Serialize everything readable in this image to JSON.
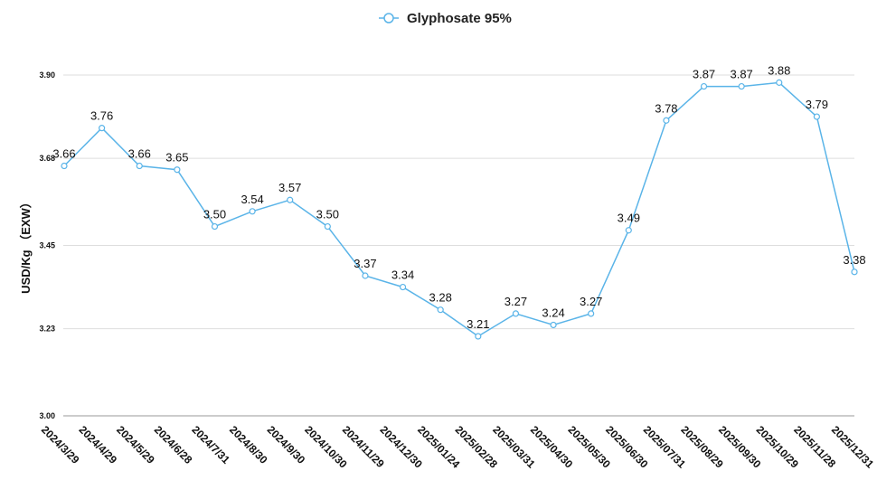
{
  "chart_data": {
    "type": "line",
    "title": "",
    "xlabel": "",
    "ylabel": "USD/Kg （EXW）",
    "ylim": [
      3.0,
      3.9
    ],
    "yticks": [
      "3.00",
      "3.23",
      "3.45",
      "3.68",
      "3.90"
    ],
    "grid": true,
    "legend_position": "top-center",
    "categories": [
      "2024/3/29",
      "2024/4/29",
      "2024/5/29",
      "2024/6/28",
      "2024/7/31",
      "2024/8/30",
      "2024/9/30",
      "2024/10/30",
      "2024/11/29",
      "2024/12/30",
      "2025/01/24",
      "2025/02/28",
      "2025/03/31",
      "2025/04/30",
      "2025/05/30",
      "2025/06/30",
      "2025/07/31",
      "2025/08/29",
      "2025/09/30",
      "2025/10/29",
      "2025/11/28",
      "2025/12/31"
    ],
    "series": [
      {
        "name": "Glyphosate 95%",
        "color": "#5ab4e8",
        "values": [
          3.66,
          3.76,
          3.66,
          3.65,
          3.5,
          3.54,
          3.57,
          3.5,
          3.37,
          3.34,
          3.28,
          3.21,
          3.27,
          3.24,
          3.27,
          3.49,
          3.78,
          3.87,
          3.87,
          3.88,
          3.79,
          3.38
        ],
        "labels": [
          "3.66",
          "3.76",
          "3.66",
          "3.65",
          "3.50",
          "3.54",
          "3.57",
          "3.50",
          "3.37",
          "3.34",
          "3.28",
          "3.21",
          "3.27",
          "3.24",
          "3.27",
          "3.49",
          "3.78",
          "3.87",
          "3.87",
          "3.88",
          "3.79",
          "3.38"
        ]
      }
    ]
  }
}
